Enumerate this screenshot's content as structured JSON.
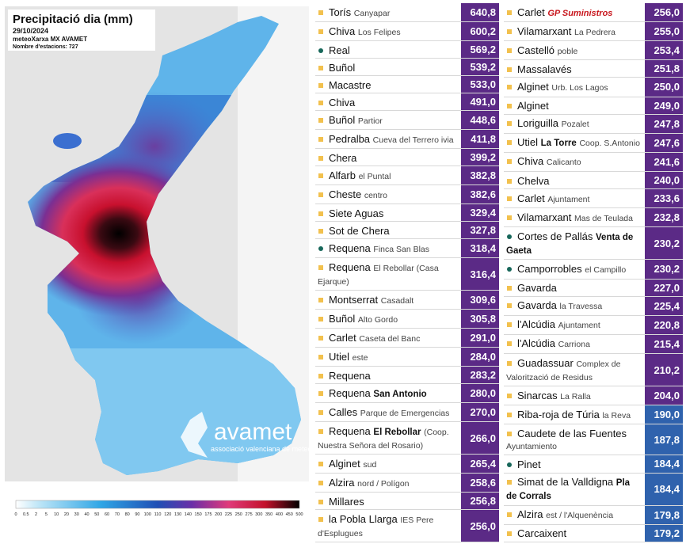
{
  "map": {
    "title": "Precipitació dia (mm)",
    "date": "29/10/2024",
    "source": "meteoXarxa MX AVAMET",
    "stations": "Nombre d'estacions: 727",
    "logo": "avamet",
    "logo_subtitle": "associació valenciana de meteorologia",
    "legend": [
      "0",
      "0.5",
      "2",
      "5",
      "10",
      "20",
      "30",
      "40",
      "50",
      "60",
      "70",
      "80",
      "90",
      "100",
      "110",
      "120",
      "130",
      "140",
      "150",
      "175",
      "200",
      "225",
      "250",
      "275",
      "300",
      "350",
      "400",
      "450",
      "500"
    ]
  },
  "left": [
    {
      "name": "Torís",
      "place": "Canyapar",
      "value": "640,8",
      "marker": "square",
      "color": "#5b2a86"
    },
    {
      "name": "Chiva",
      "place": "Los Felipes",
      "value": "600,2",
      "marker": "square",
      "color": "#5b2a86"
    },
    {
      "name": "Real",
      "value": "569,2",
      "marker": "dot",
      "color": "#5b2a86"
    },
    {
      "name": "Buñol",
      "value": "539,2",
      "marker": "square",
      "color": "#5b2a86"
    },
    {
      "name": "Macastre",
      "value": "533,0",
      "marker": "square",
      "color": "#5b2a86"
    },
    {
      "name": "Chiva",
      "value": "491,0",
      "marker": "square",
      "color": "#5b2a86"
    },
    {
      "name": "Buñol",
      "place": "Partior",
      "value": "448,6",
      "marker": "square",
      "color": "#5b2a86"
    },
    {
      "name": "Pedralba",
      "place": "Cueva del Terrero ivia",
      "value": "411,8",
      "marker": "square",
      "color": "#5b2a86"
    },
    {
      "name": "Chera",
      "value": "399,2",
      "marker": "square",
      "color": "#5b2a86"
    },
    {
      "name": "Alfarb",
      "place": "el Puntal",
      "value": "382,8",
      "marker": "square",
      "color": "#5b2a86"
    },
    {
      "name": "Cheste",
      "place": "centro",
      "value": "382,6",
      "marker": "square",
      "color": "#5b2a86"
    },
    {
      "name": "Siete Aguas",
      "value": "329,4",
      "marker": "square",
      "color": "#5b2a86"
    },
    {
      "name": "Sot de Chera",
      "value": "327,8",
      "marker": "square",
      "color": "#5b2a86"
    },
    {
      "name": "Requena",
      "place": "Finca San Blas",
      "value": "318,4",
      "marker": "dot",
      "color": "#5b2a86"
    },
    {
      "name": "Requena",
      "place": "El Rebollar (Casa Ejarque)",
      "value": "316,4",
      "marker": "square",
      "color": "#5b2a86"
    },
    {
      "name": "Montserrat",
      "place": "Casadalt",
      "value": "309,6",
      "marker": "square",
      "color": "#5b2a86"
    },
    {
      "name": "Buñol",
      "place": "Alto Gordo",
      "value": "305,8",
      "marker": "square",
      "color": "#5b2a86"
    },
    {
      "name": "Carlet",
      "place": "Caseta del Banc",
      "value": "291,0",
      "marker": "square",
      "color": "#5b2a86"
    },
    {
      "name": "Utiel",
      "place": "este",
      "value": "284,0",
      "marker": "square",
      "color": "#5b2a86"
    },
    {
      "name": "Requena",
      "value": "283,2",
      "marker": "square",
      "color": "#5b2a86"
    },
    {
      "name": "Requena",
      "bold": "San Antonio",
      "value": "280,0",
      "marker": "square",
      "color": "#5b2a86"
    },
    {
      "name": "Calles",
      "place": "Parque de Emergencias",
      "value": "270,0",
      "marker": "square",
      "color": "#5b2a86"
    },
    {
      "name": "Requena",
      "bold": "El Rebollar",
      "place": "(Coop. Nuestra Señora del Rosario)",
      "value": "266,0",
      "marker": "square",
      "color": "#5b2a86"
    },
    {
      "name": "Alginet",
      "place": "sud",
      "value": "265,4",
      "marker": "square",
      "color": "#5b2a86"
    },
    {
      "name": "Alzira",
      "place": "nord / Polígon",
      "value": "258,6",
      "marker": "square",
      "color": "#5b2a86"
    },
    {
      "name": "Millares",
      "value": "256,8",
      "marker": "square",
      "color": "#5b2a86"
    },
    {
      "name": "la Pobla Llarga",
      "place": "IES Pere d'Esplugues",
      "value": "256,0",
      "marker": "square",
      "color": "#5b2a86"
    }
  ],
  "right": [
    {
      "name": "Carlet",
      "logo": "GP Suministros",
      "value": "256,0",
      "marker": "square",
      "color": "#5b2a86"
    },
    {
      "name": "Vilamarxant",
      "place": "La Pedrera",
      "value": "255,0",
      "marker": "square",
      "color": "#5b2a86"
    },
    {
      "name": "Castelló",
      "place": "poble",
      "value": "253,4",
      "marker": "square",
      "color": "#5b2a86"
    },
    {
      "name": "Massalavés",
      "value": "251,8",
      "marker": "square",
      "color": "#5b2a86"
    },
    {
      "name": "Alginet",
      "place": "Urb. Los Lagos",
      "value": "250,0",
      "marker": "square",
      "color": "#5b2a86"
    },
    {
      "name": "Alginet",
      "value": "249,0",
      "marker": "square",
      "color": "#5b2a86"
    },
    {
      "name": "Loriguilla",
      "place": "Pozalet",
      "value": "247,8",
      "marker": "square",
      "color": "#5b2a86"
    },
    {
      "name": "Utiel",
      "bold": "La Torre",
      "place": "Coop. S.Antonio",
      "value": "247,6",
      "marker": "square",
      "color": "#5b2a86"
    },
    {
      "name": "Chiva",
      "place": "Calicanto",
      "value": "241,6",
      "marker": "square",
      "color": "#5b2a86"
    },
    {
      "name": "Chelva",
      "value": "240,0",
      "marker": "square",
      "color": "#5b2a86"
    },
    {
      "name": "Carlet",
      "place": "Ajuntament",
      "value": "233,6",
      "marker": "square",
      "color": "#5b2a86"
    },
    {
      "name": "Vilamarxant",
      "place": "Mas de Teulada",
      "value": "232,8",
      "marker": "square",
      "color": "#5b2a86"
    },
    {
      "name": "Cortes de Pallás",
      "bold": "Venta de Gaeta",
      "value": "230,2",
      "marker": "dot",
      "color": "#5b2a86"
    },
    {
      "name": "Camporrobles",
      "place": "el Campillo",
      "value": "230,2",
      "marker": "dot",
      "color": "#5b2a86"
    },
    {
      "name": "Gavarda",
      "value": "227,0",
      "marker": "square",
      "color": "#5b2a86"
    },
    {
      "name": "Gavarda",
      "place": "la Travessa",
      "value": "225,4",
      "marker": "square",
      "color": "#5b2a86"
    },
    {
      "name": "l'Alcúdia",
      "place": "Ajuntament",
      "value": "220,8",
      "marker": "square",
      "color": "#5b2a86"
    },
    {
      "name": "l'Alcúdia",
      "place": "Carriona",
      "value": "215,4",
      "marker": "square",
      "color": "#5b2a86"
    },
    {
      "name": "Guadassuar",
      "place": "Complex de Valorització de Residus",
      "value": "210,2",
      "marker": "square",
      "color": "#5b2a86"
    },
    {
      "name": "Sinarcas",
      "place": "La Ralla",
      "value": "204,0",
      "marker": "square",
      "color": "#5b2a86"
    },
    {
      "name": "Riba-roja de Túria",
      "place": "la Reva",
      "value": "190,0",
      "marker": "square",
      "color": "#2f62ad"
    },
    {
      "name": "Caudete de las Fuentes",
      "place": "Ayuntamiento",
      "value": "187,8",
      "marker": "square",
      "color": "#2f62ad"
    },
    {
      "name": "Pinet",
      "value": "184,4",
      "marker": "dot",
      "color": "#2f62ad"
    },
    {
      "name": "Simat de la Valldigna",
      "bold": "Pla de Corrals",
      "value": "184,4",
      "marker": "square",
      "color": "#2f62ad"
    },
    {
      "name": "Alzira",
      "place": "est / l'Alquenència",
      "value": "179,8",
      "marker": "square",
      "color": "#2f62ad"
    },
    {
      "name": "Carcaixent",
      "value": "179,2",
      "marker": "square",
      "color": "#2f62ad"
    }
  ]
}
